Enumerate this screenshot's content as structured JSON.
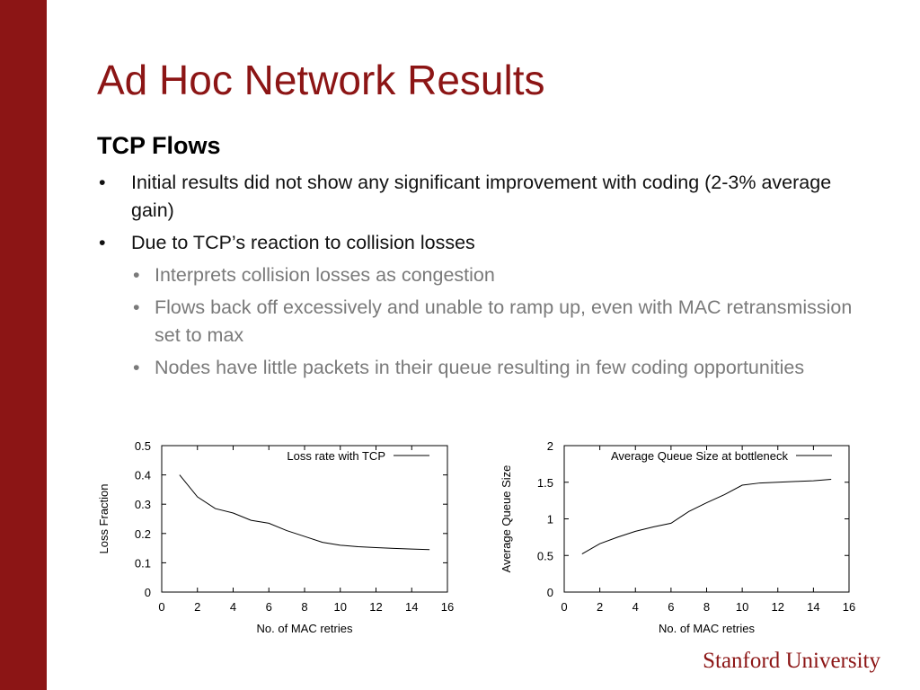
{
  "slide": {
    "title": "Ad Hoc Network Results",
    "subtitle": "TCP Flows",
    "bullets": [
      {
        "level": 1,
        "text": "Initial results did not show any significant improvement with coding (2-3% average gain)"
      },
      {
        "level": 1,
        "text": "Due to TCP’s reaction to collision losses"
      },
      {
        "level": 2,
        "text": "Interprets collision losses as congestion"
      },
      {
        "level": 2,
        "text": "Flows back off excessively and unable to ramp up, even with MAC retransmission set to max"
      },
      {
        "level": 2,
        "text": "Nodes have little packets in their queue resulting in few coding opportunities"
      }
    ],
    "bullet_glyph": "•",
    "logo_text": "Stanford University",
    "accent_color": "#8c1515"
  },
  "chart_data": [
    {
      "type": "line",
      "xlabel": "No. of MAC retries",
      "ylabel": "Loss Fraction",
      "xlim": [
        0,
        16
      ],
      "ylim": [
        0,
        0.5
      ],
      "xticks": [
        "0",
        "2",
        "4",
        "6",
        "8",
        "10",
        "12",
        "14",
        "16"
      ],
      "yticks": [
        "0",
        "0.1",
        "0.2",
        "0.3",
        "0.4",
        "0.5"
      ],
      "legend_position": "top-right",
      "grid": false,
      "series": [
        {
          "name": "Loss rate with TCP",
          "x": [
            1,
            2,
            3,
            4,
            5,
            6,
            7,
            8,
            9,
            10,
            11,
            12,
            13,
            14,
            15
          ],
          "y": [
            0.4,
            0.325,
            0.285,
            0.27,
            0.245,
            0.235,
            0.21,
            0.19,
            0.17,
            0.16,
            0.155,
            0.152,
            0.149,
            0.147,
            0.145
          ]
        }
      ]
    },
    {
      "type": "line",
      "xlabel": "No. of MAC retries",
      "ylabel": "Average Queue Size",
      "xlim": [
        0,
        16
      ],
      "ylim": [
        0,
        2
      ],
      "xticks": [
        "0",
        "2",
        "4",
        "6",
        "8",
        "10",
        "12",
        "14",
        "16"
      ],
      "yticks": [
        "0",
        "0.5",
        "1",
        "1.5",
        "2"
      ],
      "legend_position": "top-right",
      "grid": false,
      "series": [
        {
          "name": "Average Queue Size at bottleneck",
          "x": [
            1,
            2,
            3,
            4,
            5,
            6,
            7,
            8,
            9,
            10,
            11,
            12,
            13,
            14,
            15
          ],
          "y": [
            0.52,
            0.66,
            0.75,
            0.83,
            0.89,
            0.94,
            1.1,
            1.22,
            1.33,
            1.46,
            1.49,
            1.5,
            1.51,
            1.52,
            1.54
          ]
        }
      ]
    }
  ]
}
